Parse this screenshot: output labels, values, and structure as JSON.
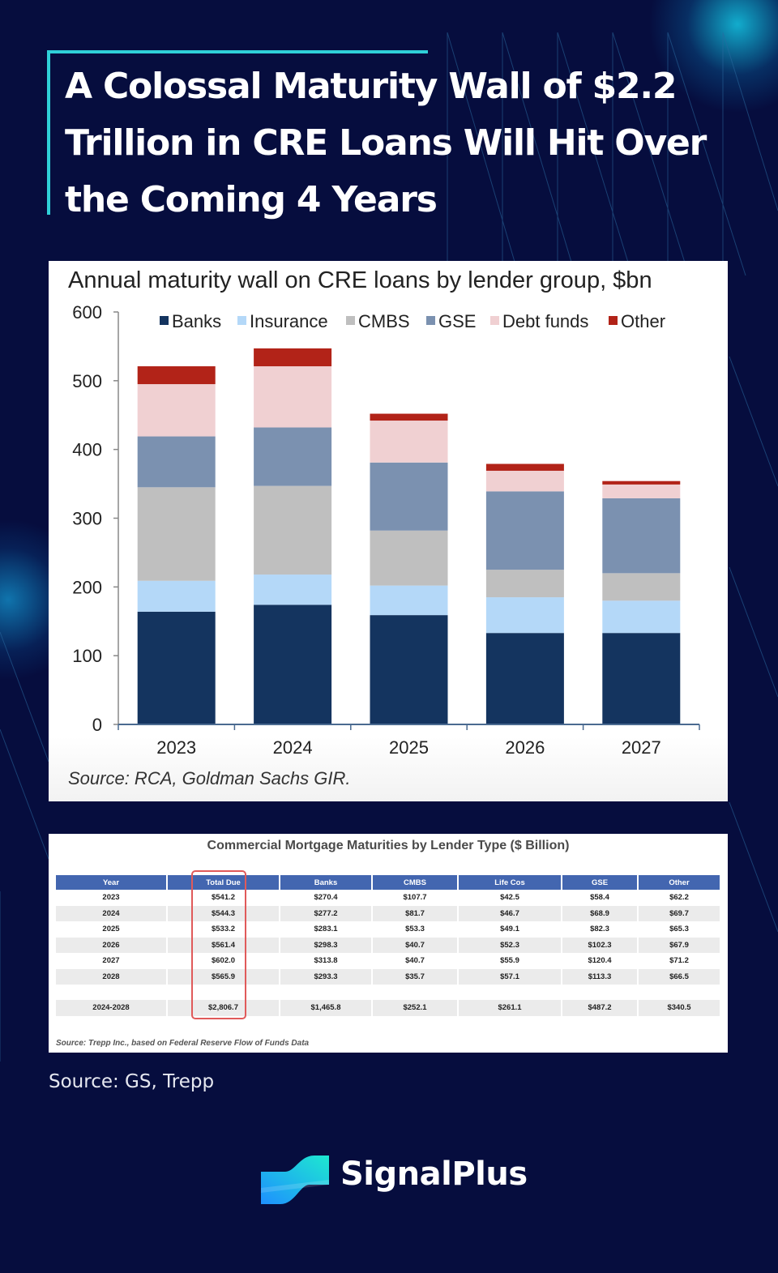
{
  "headline": {
    "lines": [
      "A Colossal Maturity Wall of $2.2",
      "Trillion in CRE Loans Will Hit Over",
      "the Coming 4 Years"
    ]
  },
  "colors": {
    "background": "#060d3e",
    "accent": "#2fd0d8",
    "banks": "#14345f",
    "insurance": "#b4d8f8",
    "cmbs": "#bfbfbf",
    "gse": "#7b91b0",
    "debt_funds": "#f0d0d2",
    "other": "#b22318",
    "table_header": "#4366b0",
    "highlight": "#e05a5a"
  },
  "chart_data": {
    "type": "bar",
    "stacked": true,
    "title": "Annual maturity wall on CRE loans by lender group, $bn",
    "xlabel": "",
    "ylabel": "",
    "categories": [
      "2023",
      "2024",
      "2025",
      "2026",
      "2027"
    ],
    "ylim": [
      0,
      600
    ],
    "yticks": [
      0,
      100,
      200,
      300,
      400,
      500,
      600
    ],
    "grid": false,
    "legend_position": "top",
    "series": [
      {
        "name": "Banks",
        "key": "banks",
        "values": [
          164,
          174,
          159,
          133,
          133
        ]
      },
      {
        "name": "Insurance",
        "key": "insurance",
        "values": [
          45,
          44,
          43,
          52,
          47
        ]
      },
      {
        "name": "CMBS",
        "key": "cmbs",
        "values": [
          136,
          129,
          80,
          40,
          40
        ]
      },
      {
        "name": "GSE",
        "key": "gse",
        "values": [
          74,
          85,
          99,
          114,
          109
        ]
      },
      {
        "name": "Debt funds",
        "key": "debt_funds",
        "values": [
          76,
          89,
          61,
          30,
          20
        ]
      },
      {
        "name": "Other",
        "key": "other",
        "values": [
          26,
          26,
          10,
          10,
          5
        ]
      }
    ],
    "source": "Source: RCA, Goldman Sachs GIR."
  },
  "table": {
    "title": "Commercial Mortgage Maturities by Lender Type ($ Billion)",
    "columns": [
      "Year",
      "Total Due",
      "Banks",
      "CMBS",
      "Life Cos",
      "GSE",
      "Other"
    ],
    "rows": [
      [
        "2023",
        "$541.2",
        "$270.4",
        "$107.7",
        "$42.5",
        "$58.4",
        "$62.2"
      ],
      [
        "2024",
        "$544.3",
        "$277.2",
        "$81.7",
        "$46.7",
        "$68.9",
        "$69.7"
      ],
      [
        "2025",
        "$533.2",
        "$283.1",
        "$53.3",
        "$49.1",
        "$82.3",
        "$65.3"
      ],
      [
        "2026",
        "$561.4",
        "$298.3",
        "$40.7",
        "$52.3",
        "$102.3",
        "$67.9"
      ],
      [
        "2027",
        "$602.0",
        "$313.8",
        "$40.7",
        "$55.9",
        "$120.4",
        "$71.2"
      ],
      [
        "2028",
        "$565.9",
        "$293.3",
        "$35.7",
        "$57.1",
        "$113.3",
        "$66.5"
      ]
    ],
    "total_row": [
      "2024-2028",
      "$2,806.7",
      "$1,465.8",
      "$252.1",
      "$261.1",
      "$487.2",
      "$340.5"
    ],
    "highlighted_column": "Total Due",
    "source": "Source: Trepp Inc., based on Federal Reserve Flow of Funds Data"
  },
  "footer": {
    "source": "Source: GS, Trepp",
    "brand": "SignalPlus"
  }
}
